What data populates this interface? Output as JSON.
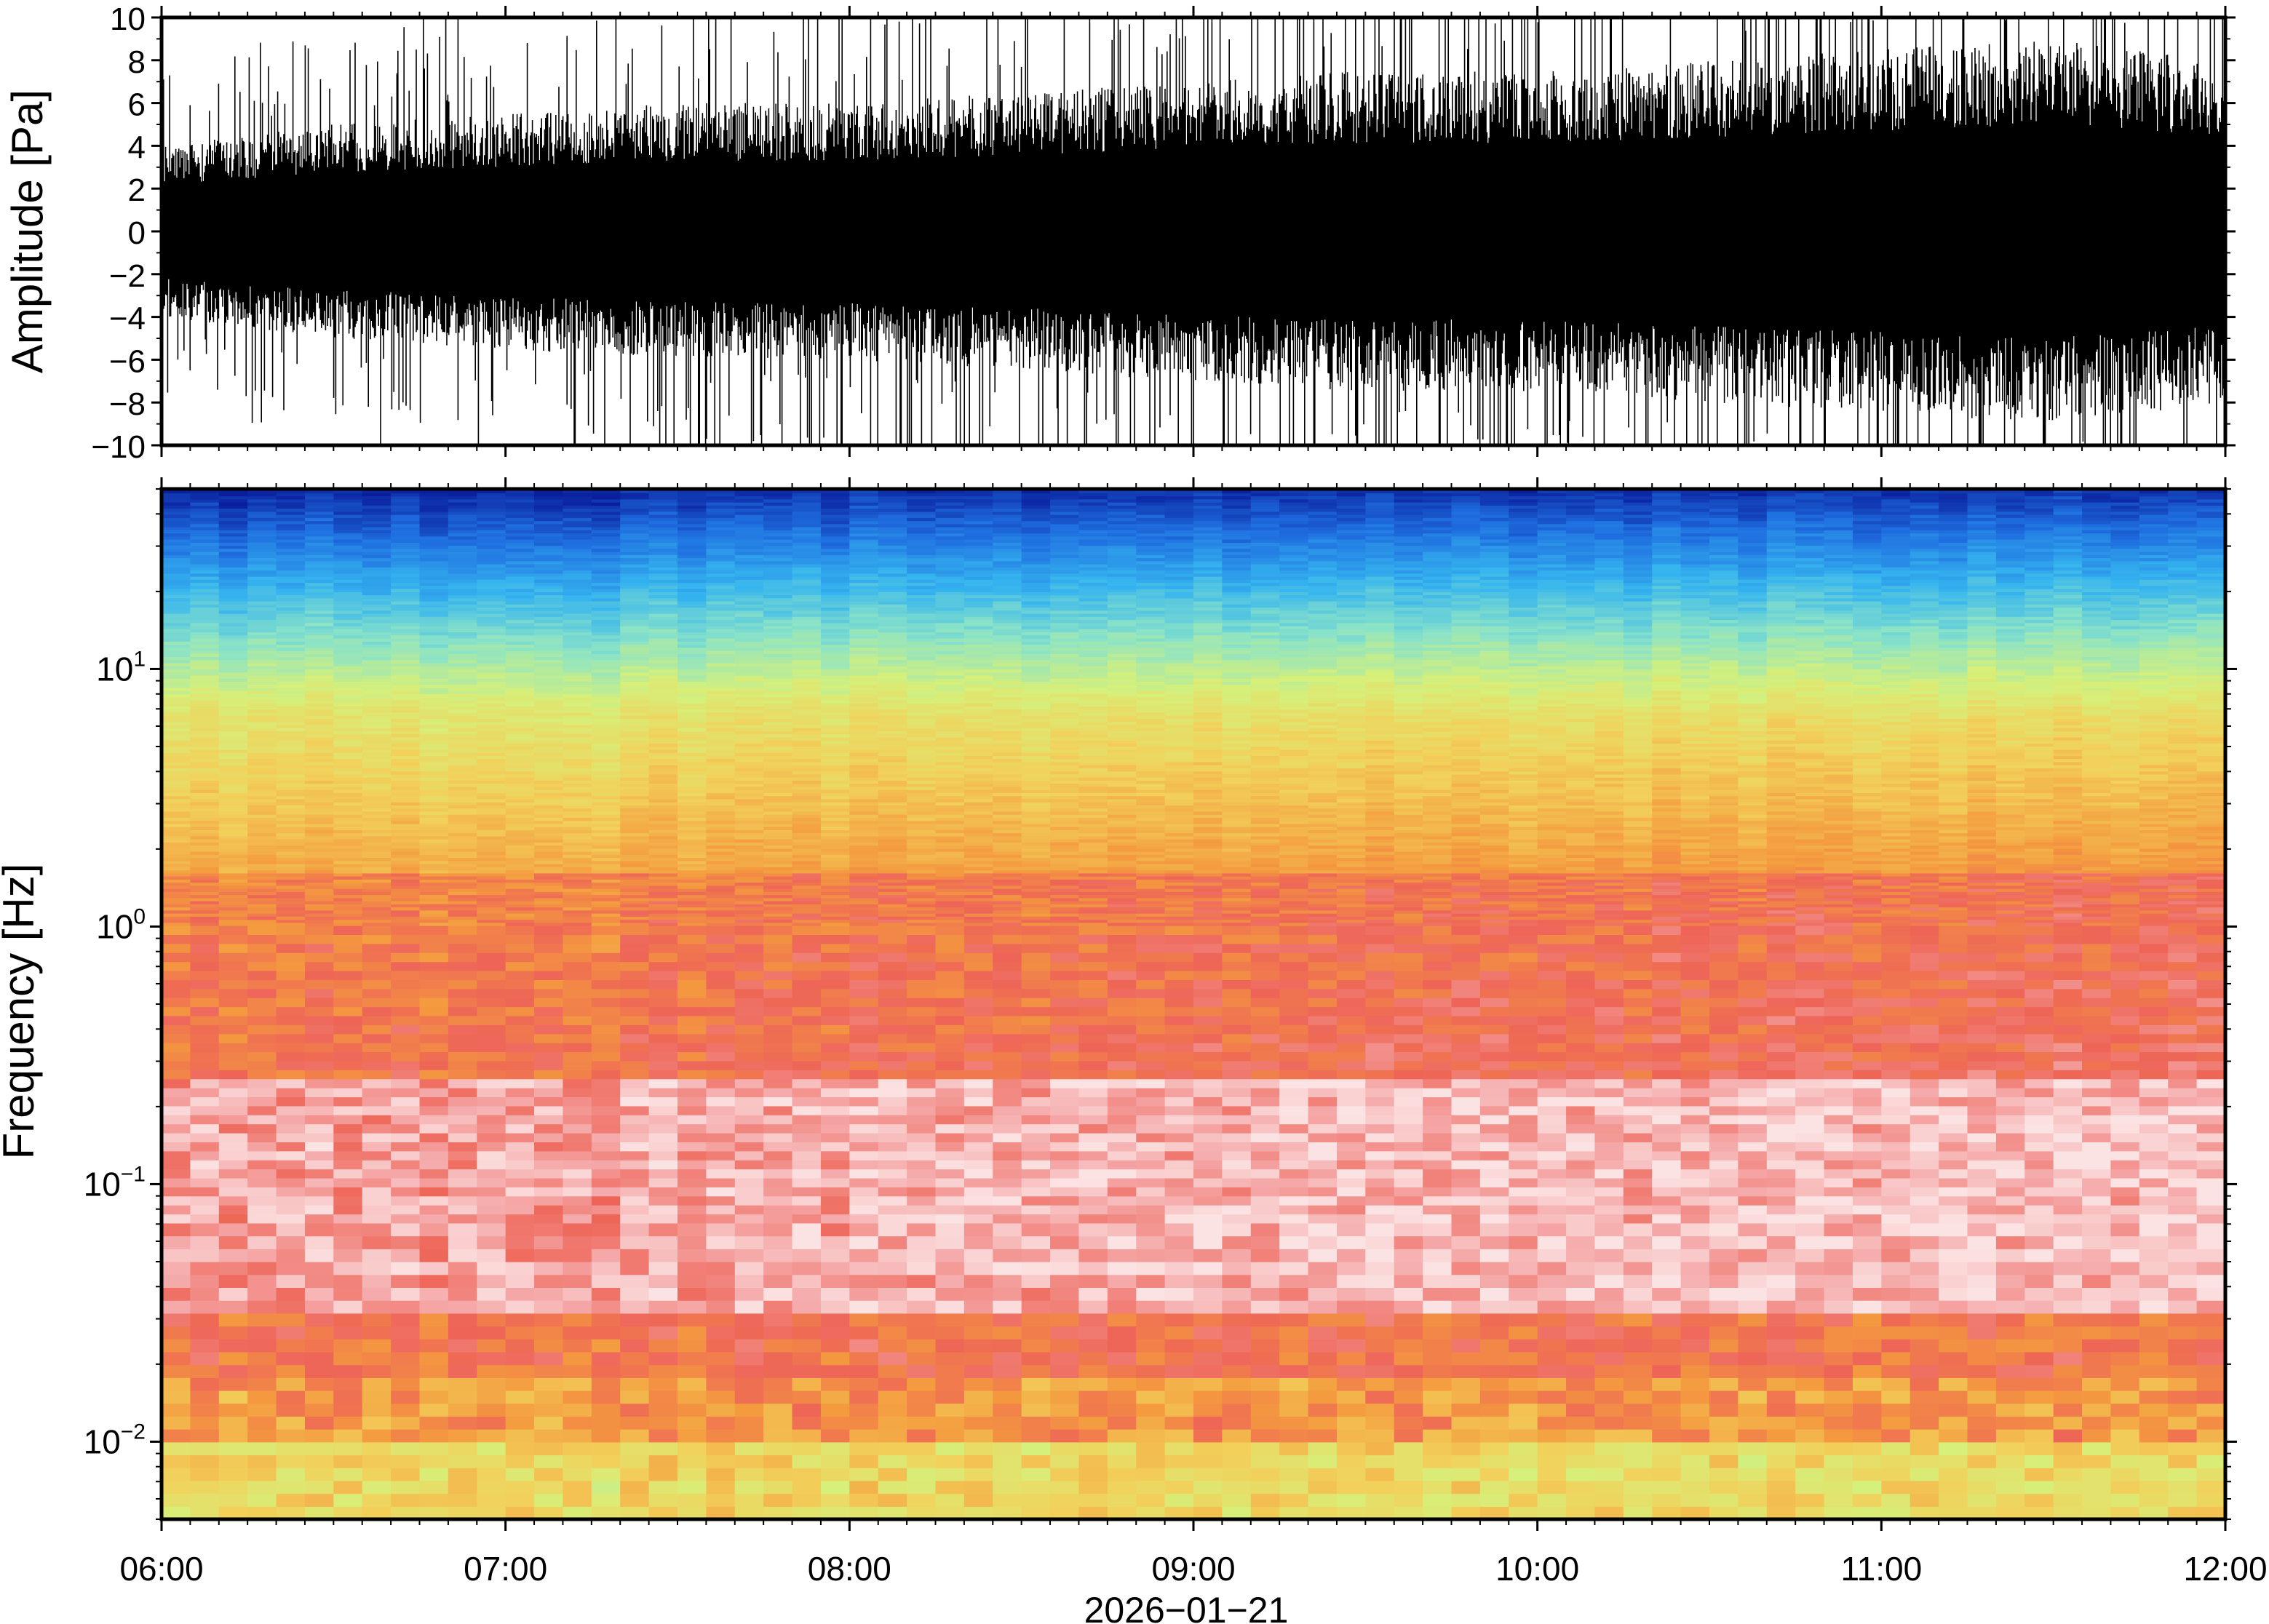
{
  "chart_data": [
    {
      "type": "line",
      "panel": "waveform",
      "ylabel": "Amplitude [Pa]",
      "ylim": [
        -10,
        10
      ],
      "yticks": [
        -10,
        -8,
        -6,
        -4,
        -2,
        0,
        2,
        4,
        6,
        8,
        10
      ],
      "ytick_labels": [
        "−10",
        "−8",
        "−6",
        "−4",
        "−2",
        "0",
        "2",
        "4",
        "6",
        "8",
        "10"
      ],
      "xlim": [
        "06:00",
        "12:00"
      ],
      "grid": false,
      "series": [
        {
          "color": "#000000",
          "x": [
            "06:00",
            "06:30",
            "07:00",
            "07:30",
            "08:00",
            "08:30",
            "09:00",
            "09:30",
            "10:00",
            "10:30",
            "11:00",
            "11:30",
            "12:00"
          ],
          "envelope_upper": [
            4.0,
            5.0,
            5.5,
            6.0,
            6.0,
            6.5,
            7.0,
            7.5,
            7.5,
            8.0,
            8.5,
            9.0,
            8.0
          ],
          "envelope_lower": [
            -4.0,
            -5.0,
            -5.5,
            -6.0,
            -6.0,
            -6.5,
            -7.0,
            -7.5,
            -7.5,
            -8.0,
            -8.5,
            -9.0,
            -8.0
          ]
        }
      ]
    },
    {
      "type": "heatmap",
      "panel": "spectrogram",
      "ylabel": "Frequency [Hz]",
      "yscale": "log",
      "ylim": [
        0.005,
        50
      ],
      "yticks": [
        {
          "base": "10",
          "exp": "−2",
          "value": 0.01
        },
        {
          "base": "10",
          "exp": "−1",
          "value": 0.1
        },
        {
          "base": "10",
          "exp": "0",
          "value": 1
        },
        {
          "base": "10",
          "exp": "1",
          "value": 10
        }
      ],
      "xlabel": "2026−01−21",
      "xlim": [
        "06:00",
        "12:00"
      ],
      "xtick_labels": [
        "06:00",
        "07:00",
        "08:00",
        "09:00",
        "10:00",
        "11:00",
        "12:00"
      ],
      "colormap": [
        "#0a1e9c",
        "#1f6fe0",
        "#35b4ef",
        "#8ae3c8",
        "#d6f07a",
        "#f2d05a",
        "#f49a3f",
        "#ee6557",
        "#f5a8a8",
        "#fce3e3"
      ],
      "grid": false
    }
  ]
}
